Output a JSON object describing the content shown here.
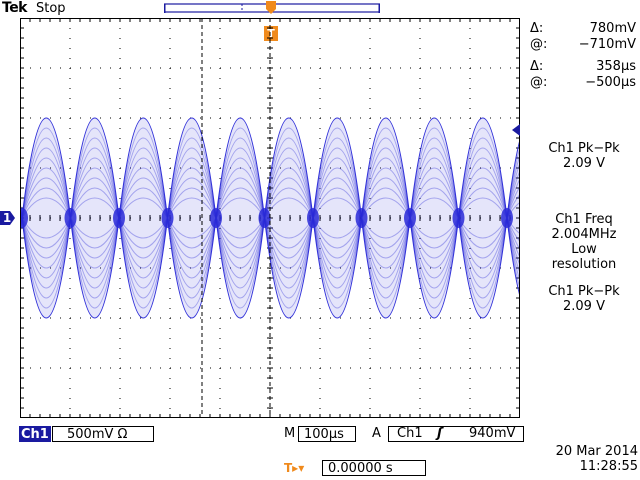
{
  "header": {
    "brand": "Tek",
    "acq_state": "Stop",
    "trigger_marker": "T"
  },
  "colors": {
    "trace": "#2a2ad8",
    "accent": "#f08a1c",
    "ch1": "#1a1aa0",
    "grid": "#000000"
  },
  "cursors": {
    "amp_delta_symbol": "Δ:",
    "amp_delta": "780mV",
    "amp_at_symbol": "@:",
    "amp_at": "−710mV",
    "time_delta_symbol": "Δ:",
    "time_delta": "358µs",
    "time_at_symbol": "@:",
    "time_at": "−500µs"
  },
  "measurements": {
    "m1": {
      "label": "Ch1 Pk−Pk",
      "value": "2.09 V"
    },
    "m2": {
      "label": "Ch1 Freq",
      "value": "2.004MHz",
      "note1": "Low",
      "note2": "resolution"
    },
    "m3": {
      "label": "Ch1 Pk−Pk",
      "value": "2.09 V"
    }
  },
  "channel_marker": "1",
  "status": {
    "ch1_label": "Ch1",
    "ch1_scale": "500mV Ω",
    "timebase_prefix": "M",
    "timebase": "100µs",
    "trigger_prefix": "A",
    "trigger_source": "Ch1",
    "trigger_slope": "ʃ",
    "trigger_level": "940mV",
    "trigger_offset_icon": "T▸▾",
    "trigger_offset": "0.00000 s",
    "date": "20 Mar 2014",
    "time": "11:28:55"
  }
}
